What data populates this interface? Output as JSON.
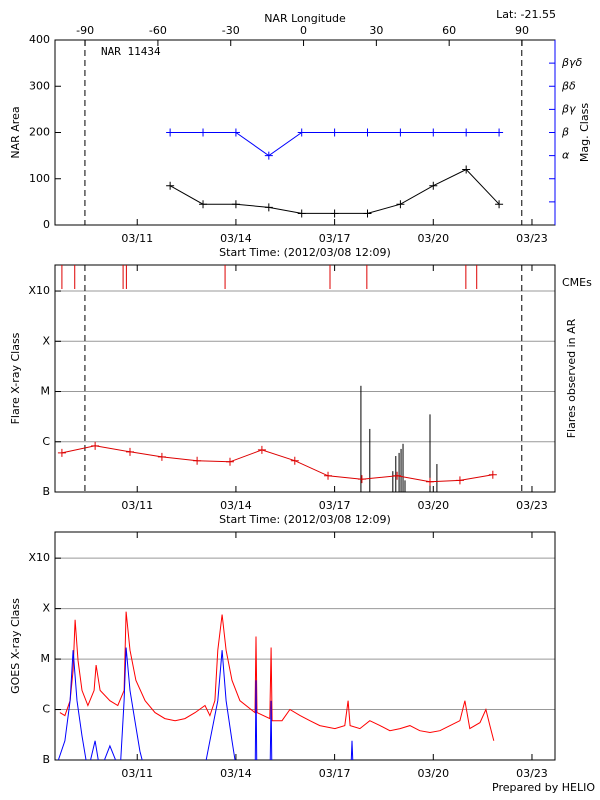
{
  "chart_data": [
    {
      "type": "line",
      "annotation": "NAR 11434",
      "corner_text": "Lat: -21.55",
      "x2label": "NAR Longitude",
      "xlabel": "Start Time: (2012/03/08 12:09)",
      "ylabel": "NAR Area",
      "y2label": "Mag. Class",
      "xlim": [
        8.5,
        23.7
      ],
      "xticks": [
        {
          "value": 11,
          "label": "03/11"
        },
        {
          "value": 14,
          "label": "03/14"
        },
        {
          "value": 17,
          "label": "03/17"
        },
        {
          "value": 20,
          "label": "03/20"
        },
        {
          "value": 23,
          "label": "03/23"
        }
      ],
      "x2lim": [
        -102.4,
        103.6
      ],
      "x2ticks": [
        -90,
        -60,
        -30,
        0,
        30,
        60,
        90
      ],
      "ylim": [
        0,
        400
      ],
      "yticks": [
        0,
        100,
        200,
        300,
        400
      ],
      "y2lim": [
        -1,
        7
      ],
      "y2ticks": [
        {
          "value": 0,
          "label": null
        },
        {
          "value": 1,
          "label": null
        },
        {
          "value": 2,
          "label": "α"
        },
        {
          "value": 3,
          "label": "β"
        },
        {
          "value": 4,
          "label": "βγ"
        },
        {
          "value": 5,
          "label": "βδ"
        },
        {
          "value": 6,
          "label": "βγδ"
        }
      ],
      "limb_lines": [
        9.41,
        22.69
      ],
      "marker": "+",
      "grid": false,
      "x": [
        12,
        13,
        14,
        15,
        16,
        17,
        18,
        19,
        20,
        21,
        22
      ],
      "series": [
        {
          "color": "#000000",
          "values": [
            85,
            45,
            45,
            38,
            25,
            25,
            25,
            45,
            85,
            120,
            45
          ]
        },
        {
          "color": "#0000ff",
          "axis": "y2",
          "values": [
            3,
            3,
            3,
            2,
            3,
            3,
            3,
            3,
            3,
            3,
            3
          ]
        }
      ]
    },
    {
      "type": "line",
      "xlabel": "Start Time: (2012/03/08 12:09)",
      "ylabel": "Flare X-ray Class",
      "y2label": "Flares observed in AR",
      "cme_label": "CMEs",
      "xlim": [
        8.5,
        23.7
      ],
      "xticks": [
        {
          "value": 11,
          "label": "03/11"
        },
        {
          "value": 14,
          "label": "03/14"
        },
        {
          "value": 17,
          "label": "03/17"
        },
        {
          "value": 20,
          "label": "03/20"
        },
        {
          "value": 23,
          "label": "03/23"
        }
      ],
      "log_scale": true,
      "ylim": [
        1e-07,
        0.0033
      ],
      "yticks": [
        {
          "value": 1e-07,
          "label": "B"
        },
        {
          "value": 1e-06,
          "label": "C"
        },
        {
          "value": 1e-05,
          "label": "M"
        },
        {
          "value": 0.0001,
          "label": "X"
        },
        {
          "value": 0.001,
          "label": "X10"
        }
      ],
      "grid": true,
      "limb_lines": [
        9.41,
        22.69
      ],
      "cmes": {
        "color": "#dd0000",
        "x": [
          8.71,
          9.1,
          10.57,
          10.67,
          13.67,
          16.86,
          17.98,
          20.99,
          21.32
        ]
      },
      "flares": {
        "color": "#000000",
        "x": [
          17.8,
          18.07,
          18.77,
          18.86,
          18.96,
          19.02,
          19.08,
          19.14,
          19.9,
          20.11
        ],
        "values": [
          1.3e-05,
          1.8e-06,
          2.6e-07,
          5.2e-07,
          6e-07,
          7.2e-07,
          9.1e-07,
          1.7e-07,
          3.5e-06,
          3.6e-07
        ]
      },
      "marker": "+",
      "x": [
        8.71,
        9.72,
        10.78,
        11.75,
        12.82,
        13.82,
        14.79,
        15.79,
        16.8,
        17.83,
        18.9,
        19.9,
        20.81,
        21.81
      ],
      "series": [
        {
          "color": "#dd0000",
          "values": [
            6e-07,
            8.3e-07,
            6.3e-07,
            5e-07,
            4.2e-07,
            4e-07,
            6.9e-07,
            4.2e-07,
            2.1e-07,
            1.8e-07,
            2.1e-07,
            1.6e-07,
            1.7e-07,
            2.2e-07
          ]
        }
      ]
    },
    {
      "type": "line",
      "ylabel": "GOES X-ray Class",
      "credit": "Prepared by HELIO",
      "xlim": [
        8.5,
        23.7
      ],
      "xticks": [
        {
          "value": 11,
          "label": "03/11"
        },
        {
          "value": 14,
          "label": "03/14"
        },
        {
          "value": 17,
          "label": "03/17"
        },
        {
          "value": 20,
          "label": "03/20"
        },
        {
          "value": 23,
          "label": "03/23"
        }
      ],
      "log_scale": true,
      "ylim": [
        1e-07,
        0.0033
      ],
      "yticks": [
        {
          "value": 1e-07,
          "label": "B"
        },
        {
          "value": 1e-06,
          "label": "C"
        },
        {
          "value": 1e-05,
          "label": "M"
        },
        {
          "value": 0.0001,
          "label": "X"
        },
        {
          "value": 0.001,
          "label": "X10"
        }
      ],
      "grid": true,
      "series": [
        {
          "color": "#ff0000",
          "x": [
            8.65,
            8.8,
            8.96,
            9.05,
            9.11,
            9.2,
            9.32,
            9.5,
            9.69,
            9.75,
            9.87,
            10.17,
            10.41,
            10.6,
            10.66,
            10.78,
            10.96,
            11.24,
            11.54,
            11.84,
            12.15,
            12.45,
            12.76,
            13.06,
            13.21,
            13.36,
            13.45,
            13.58,
            13.7,
            13.88,
            14.12,
            14.58,
            14.61,
            14.64,
            15.03,
            15.07,
            15.1,
            15.4,
            15.64,
            15.95,
            16.25,
            16.55,
            17.01,
            17.31,
            17.41,
            17.47,
            17.77,
            18.07,
            18.38,
            18.68,
            18.99,
            19.29,
            19.59,
            19.9,
            20.2,
            20.51,
            20.81,
            20.96,
            21.11,
            21.42,
            21.6,
            21.72,
            21.84
          ],
          "values": [
            8.7e-07,
            7.6e-07,
            1.5e-06,
            6e-06,
            6e-05,
            9.5e-06,
            2.4e-06,
            1.2e-06,
            2.4e-06,
            7.6e-06,
            2.4e-06,
            1.5e-06,
            1.2e-06,
            2.4e-06,
            8.7e-05,
            1.5e-05,
            3.8e-06,
            1.5e-06,
            8.7e-07,
            6.6e-07,
            6e-07,
            6.6e-07,
            8.7e-07,
            1.2e-06,
            7.6e-07,
            1.5e-06,
            1.5e-05,
            7.6e-05,
            1.5e-05,
            3.8e-06,
            1.5e-06,
            8.7e-07,
            2.8e-05,
            8.7e-07,
            6.6e-07,
            1.7e-05,
            6e-07,
            6e-07,
            1e-06,
            7.6e-07,
            6e-07,
            4.8e-07,
            4.2e-07,
            4.8e-07,
            1.5e-06,
            4.8e-07,
            4.2e-07,
            6e-07,
            4.8e-07,
            3.8e-07,
            4.2e-07,
            4.8e-07,
            3.8e-07,
            3.5e-07,
            3.8e-07,
            4.8e-07,
            6e-07,
            1.5e-06,
            4.2e-07,
            5.5e-07,
            1e-06,
            4.8e-07,
            2.4e-07
          ]
        },
        {
          "color": "#0000ff",
          "x": [
            8.59,
            8.8,
            8.96,
            9.05,
            9.17,
            9.32,
            9.5,
            9.72,
            9.87,
            10.17,
            10.48,
            10.6,
            10.66,
            10.78,
            10.93,
            11.08,
            11.39,
            12.91,
            13.21,
            13.45,
            13.58,
            13.7,
            13.88,
            14.12,
            14.58,
            14.61,
            14.64,
            15.03,
            15.07,
            15.1,
            17.47,
            17.53,
            17.59,
            21.84
          ],
          "values": [
            9.5e-08,
            2.4e-07,
            1.5e-06,
            1.5e-05,
            1.5e-06,
            3e-07,
            6e-08,
            2.4e-07,
            6e-08,
            1.9e-07,
            6e-08,
            1.5e-06,
            1.7e-05,
            2.4e-06,
            6e-07,
            1.5e-07,
            2.4e-08,
            2.4e-08,
            2.4e-07,
            1.5e-06,
            1.5e-05,
            1.5e-06,
            2.4e-07,
            2.4e-08,
            2.4e-08,
            3.8e-06,
            2.4e-08,
            2.4e-08,
            1.5e-06,
            2.4e-08,
            2.4e-08,
            2.4e-07,
            2.4e-08,
            2.4e-08
          ]
        }
      ]
    }
  ]
}
